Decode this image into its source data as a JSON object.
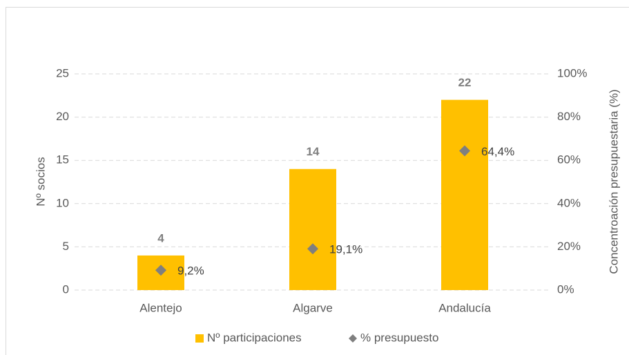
{
  "chart_data": {
    "type": "bar",
    "categories": [
      "Alentejo",
      "Algarve",
      "Andalucía"
    ],
    "series": [
      {
        "name": "Nº participaciones",
        "color": "#ffc000",
        "values": [
          4,
          14,
          22
        ]
      },
      {
        "name": "% presupuesto",
        "color": "#7f7f7f",
        "type": "scatter",
        "axis": "y2",
        "values": [
          9.2,
          19.1,
          64.4
        ],
        "value_labels": [
          "9,2%",
          "19,1%",
          "64,4%"
        ]
      }
    ],
    "ylabel": "Nº socios",
    "y2label": "Concentroación presupuestaria (%)",
    "ylim": [
      0,
      25
    ],
    "yticks": [
      0,
      5,
      10,
      15,
      20,
      25
    ],
    "y2lim": [
      0,
      100
    ],
    "y2ticks": [
      {
        "value": 0,
        "label": "0%"
      },
      {
        "value": 20,
        "label": "20%"
      },
      {
        "value": 40,
        "label": "40%"
      },
      {
        "value": 60,
        "label": "60%"
      },
      {
        "value": 80,
        "label": "80%"
      },
      {
        "value": 100,
        "label": "100%"
      }
    ],
    "grid": true,
    "legend": "bottom"
  }
}
